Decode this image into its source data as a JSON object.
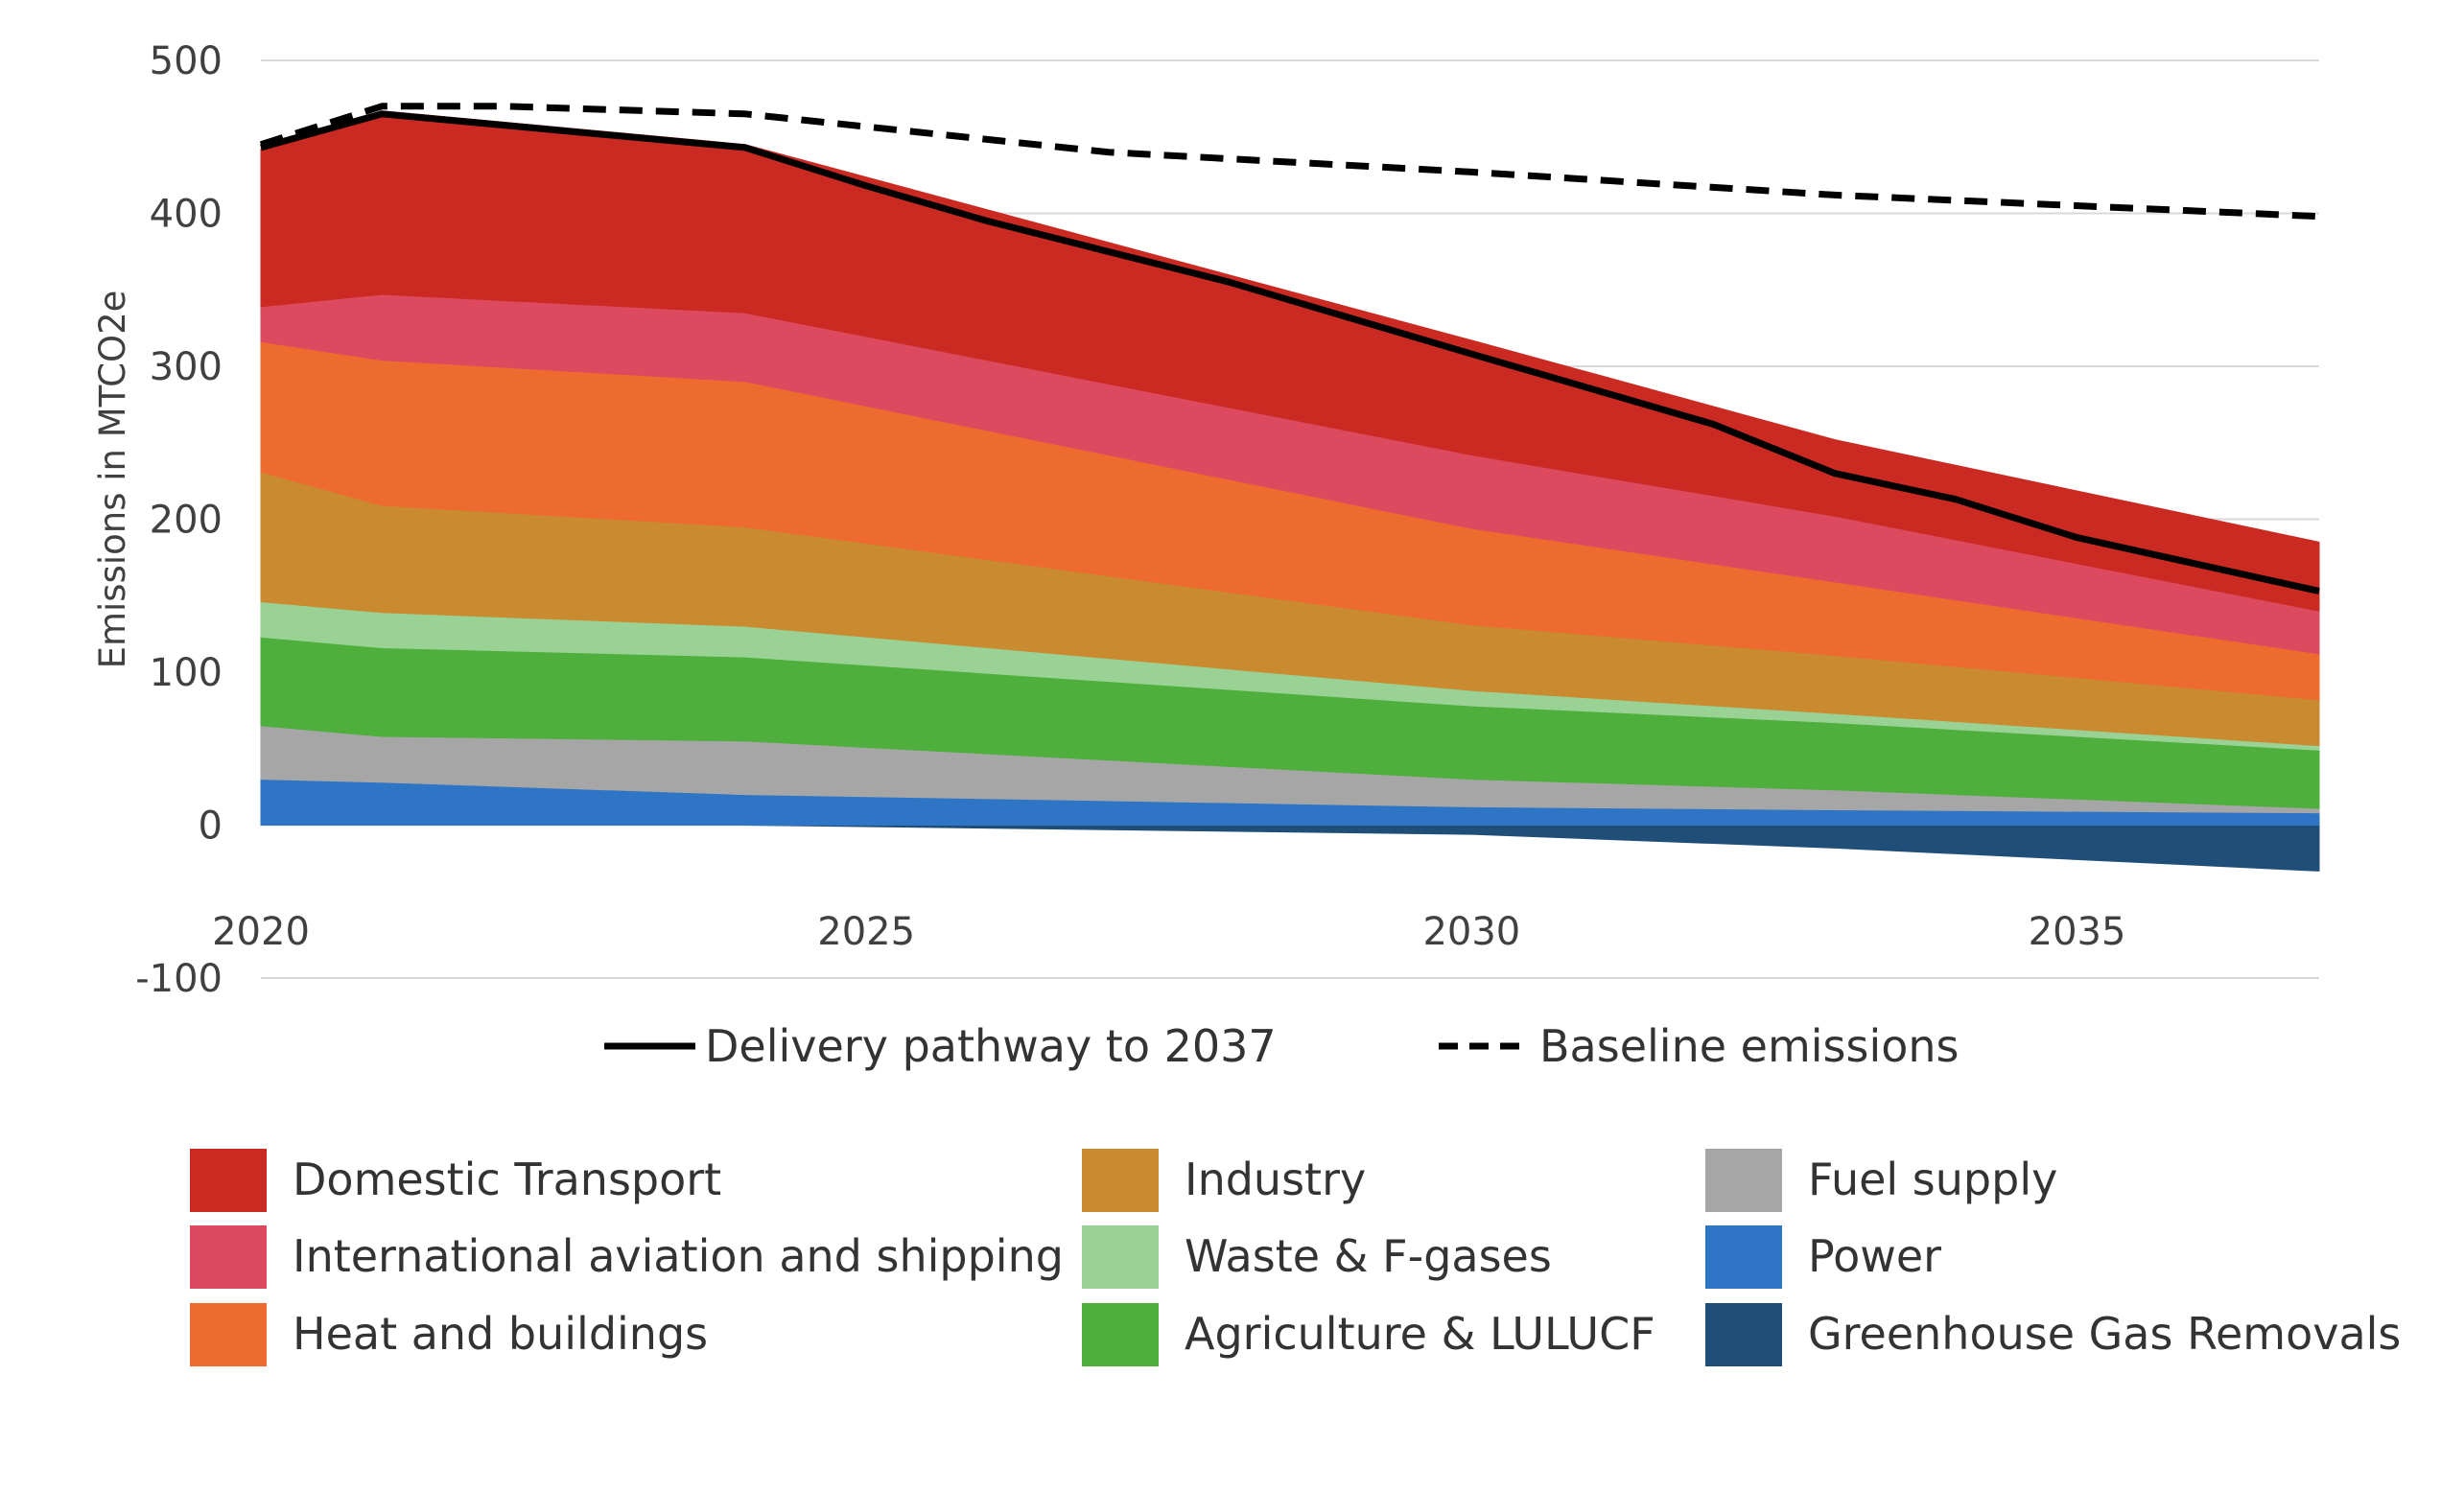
{
  "chart_data": {
    "type": "area",
    "title": "",
    "ylabel": "Emissions in MTCO2e",
    "xlabel": "",
    "xlim": [
      2020,
      2037
    ],
    "ylim": [
      -100,
      500
    ],
    "y_ticks": [
      "500",
      "400",
      "300",
      "200",
      "100",
      "0",
      "-100"
    ],
    "y_tick_values": [
      500,
      400,
      300,
      200,
      100,
      0,
      -100
    ],
    "x_ticks": [
      "2020",
      "2025",
      "2030",
      "2035"
    ],
    "x_tick_values": [
      2020,
      2025,
      2030,
      2035
    ],
    "grid": true,
    "legend_position": "bottom",
    "x": [
      2020,
      2021,
      2024,
      2030,
      2033,
      2037
    ],
    "series": [
      {
        "name": "Greenhouse Gas Removals",
        "color": "#1f4e79",
        "values": [
          0,
          0,
          0,
          -6,
          -15,
          -30
        ]
      },
      {
        "name": "Power",
        "color": "#2e75c6",
        "values": [
          30,
          28,
          20,
          12,
          10,
          8
        ]
      },
      {
        "name": "Fuel supply",
        "color": "#a6a6a6",
        "values": [
          35,
          30,
          35,
          18,
          13,
          3
        ]
      },
      {
        "name": "Agriculture & LULUCF",
        "color": "#4eaf3c",
        "values": [
          58,
          58,
          55,
          48,
          44,
          38
        ]
      },
      {
        "name": "Waste & F-gases",
        "color": "#9ad296",
        "values": [
          23,
          23,
          20,
          10,
          6,
          3
        ]
      },
      {
        "name": "Industry",
        "color": "#c98a30",
        "values": [
          85,
          70,
          65,
          43,
          38,
          30
        ]
      },
      {
        "name": "Heat and buildings",
        "color": "#ee6b30",
        "values": [
          85,
          95,
          95,
          63,
          48,
          30
        ]
      },
      {
        "name": "International aviation and shipping",
        "color": "#dd4a60",
        "values": [
          23,
          43,
          45,
          48,
          43,
          28
        ]
      },
      {
        "name": "Domestic Transport",
        "color": "#cb2a23",
        "values": [
          103,
          120,
          110,
          75,
          50,
          45
        ]
      }
    ],
    "lines": [
      {
        "name": "Delivery pathway to 2037",
        "style": "solid",
        "color": "#000000",
        "x": [
          2020,
          2021,
          2024,
          2025,
          2026,
          2028,
          2030,
          2032,
          2033,
          2034,
          2035,
          2037
        ],
        "values": [
          443,
          465,
          443,
          418,
          395,
          355,
          308,
          262,
          230,
          213,
          188,
          153
        ]
      },
      {
        "name": "Baseline emissions",
        "style": "dashed",
        "color": "#000000",
        "x": [
          2020,
          2021,
          2022,
          2024,
          2027,
          2030,
          2033,
          2037
        ],
        "values": [
          445,
          470,
          470,
          465,
          440,
          427,
          412,
          398
        ]
      }
    ]
  }
}
